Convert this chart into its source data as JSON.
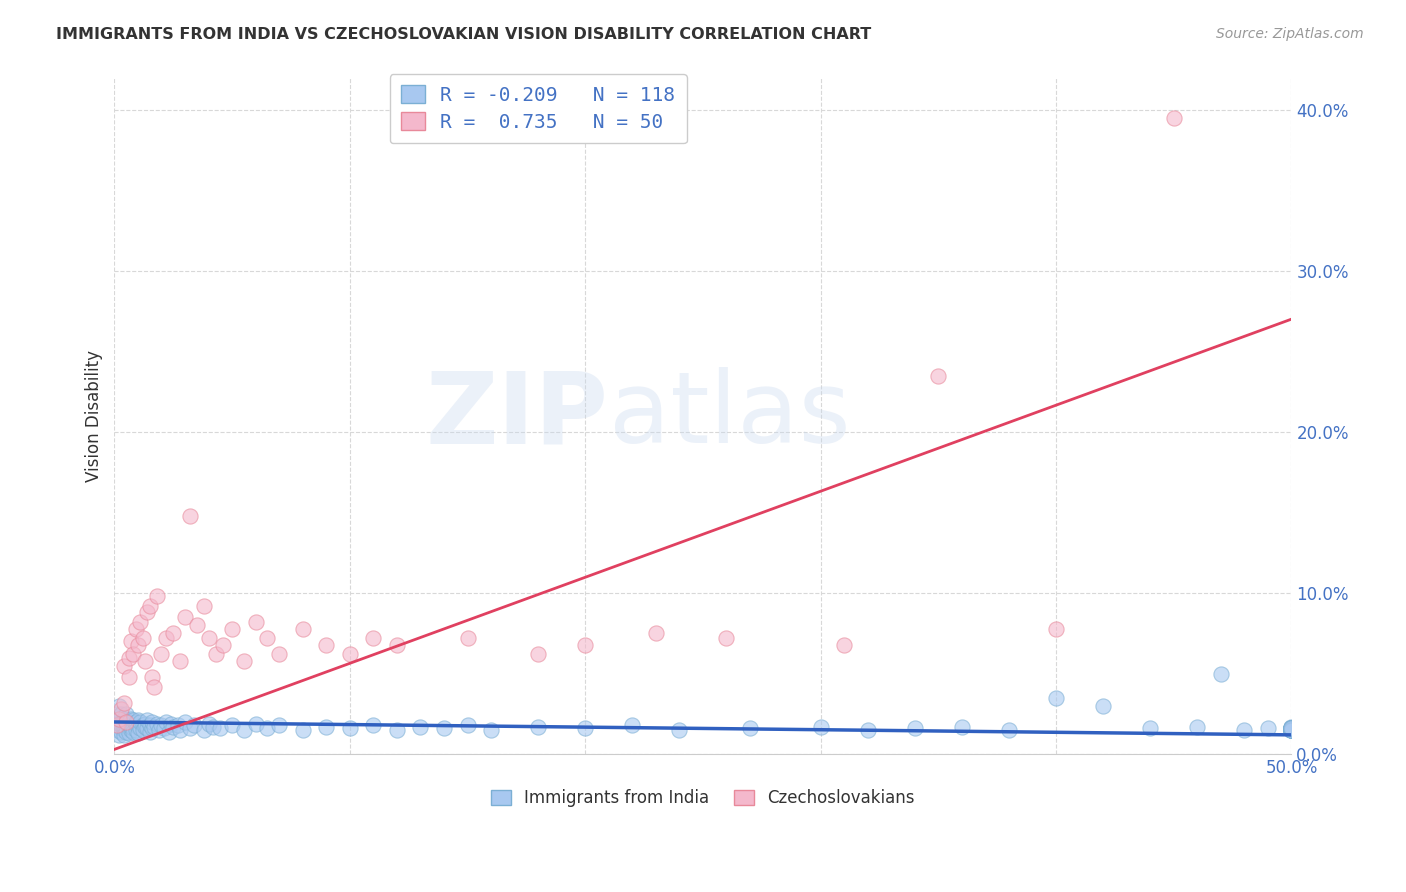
{
  "title": "IMMIGRANTS FROM INDIA VS CZECHOSLOVAKIAN VISION DISABILITY CORRELATION CHART",
  "source": "Source: ZipAtlas.com",
  "ylabel": "Vision Disability",
  "watermark": "ZIPatlas",
  "xlim": [
    0.0,
    0.5
  ],
  "ylim": [
    0.0,
    0.42
  ],
  "yticks": [
    0.0,
    0.1,
    0.2,
    0.3,
    0.4
  ],
  "xticks_grid": [
    0.0,
    0.1,
    0.2,
    0.3,
    0.4,
    0.5
  ],
  "xtick_edge_labels": [
    "0.0%",
    "50.0%"
  ],
  "xtick_edge_positions": [
    0.0,
    0.5
  ],
  "ytick_labels": [
    "0.0%",
    "10.0%",
    "20.0%",
    "30.0%",
    "40.0%"
  ],
  "blue_color": "#a8c8f0",
  "pink_color": "#f4b8cc",
  "blue_edge": "#7bafd4",
  "pink_edge": "#e8899a",
  "trend_blue_color": "#3060c0",
  "trend_pink_color": "#e04060",
  "title_color": "#333333",
  "source_color": "#999999",
  "axis_label_color": "#333333",
  "tick_color": "#4472c4",
  "grid_color": "#d8d8d8",
  "background_color": "#ffffff",
  "legend_label_blue": "Immigrants from India",
  "legend_label_pink": "Czechoslovakians",
  "legend_R_blue": "R = -0.209",
  "legend_N_blue": "N = 118",
  "legend_R_pink": "R =  0.735",
  "legend_N_pink": "N = 50",
  "blue_scatter_x": [
    0.001,
    0.001,
    0.001,
    0.002,
    0.002,
    0.002,
    0.002,
    0.003,
    0.003,
    0.003,
    0.003,
    0.003,
    0.004,
    0.004,
    0.004,
    0.004,
    0.004,
    0.005,
    0.005,
    0.005,
    0.005,
    0.005,
    0.006,
    0.006,
    0.006,
    0.006,
    0.007,
    0.007,
    0.007,
    0.007,
    0.008,
    0.008,
    0.008,
    0.009,
    0.009,
    0.009,
    0.01,
    0.01,
    0.01,
    0.011,
    0.011,
    0.012,
    0.012,
    0.013,
    0.013,
    0.014,
    0.014,
    0.015,
    0.015,
    0.016,
    0.016,
    0.017,
    0.018,
    0.019,
    0.02,
    0.021,
    0.022,
    0.023,
    0.024,
    0.025,
    0.027,
    0.028,
    0.03,
    0.032,
    0.034,
    0.038,
    0.04,
    0.042,
    0.045,
    0.05,
    0.055,
    0.06,
    0.065,
    0.07,
    0.08,
    0.09,
    0.1,
    0.11,
    0.12,
    0.13,
    0.14,
    0.15,
    0.16,
    0.18,
    0.2,
    0.22,
    0.24,
    0.27,
    0.3,
    0.32,
    0.34,
    0.36,
    0.38,
    0.4,
    0.42,
    0.44,
    0.46,
    0.47,
    0.48,
    0.49,
    0.5,
    0.5,
    0.5,
    0.5,
    0.5,
    0.5,
    0.5,
    0.5,
    0.5,
    0.5,
    0.5,
    0.5,
    0.5,
    0.5,
    0.5,
    0.5,
    0.5,
    0.5
  ],
  "blue_scatter_y": [
    0.02,
    0.015,
    0.025,
    0.018,
    0.022,
    0.012,
    0.03,
    0.016,
    0.02,
    0.014,
    0.025,
    0.018,
    0.015,
    0.02,
    0.017,
    0.022,
    0.012,
    0.018,
    0.016,
    0.021,
    0.014,
    0.025,
    0.016,
    0.02,
    0.018,
    0.013,
    0.015,
    0.019,
    0.022,
    0.017,
    0.016,
    0.021,
    0.014,
    0.018,
    0.02,
    0.015,
    0.017,
    0.021,
    0.013,
    0.016,
    0.02,
    0.018,
    0.015,
    0.019,
    0.017,
    0.016,
    0.021,
    0.014,
    0.018,
    0.016,
    0.02,
    0.017,
    0.019,
    0.015,
    0.018,
    0.016,
    0.02,
    0.014,
    0.019,
    0.017,
    0.018,
    0.015,
    0.02,
    0.016,
    0.018,
    0.015,
    0.019,
    0.017,
    0.016,
    0.018,
    0.015,
    0.019,
    0.016,
    0.018,
    0.015,
    0.017,
    0.016,
    0.018,
    0.015,
    0.017,
    0.016,
    0.018,
    0.015,
    0.017,
    0.016,
    0.018,
    0.015,
    0.016,
    0.017,
    0.015,
    0.016,
    0.017,
    0.015,
    0.035,
    0.03,
    0.016,
    0.017,
    0.05,
    0.015,
    0.016,
    0.016,
    0.016,
    0.015,
    0.016,
    0.015,
    0.017,
    0.015,
    0.016,
    0.015,
    0.016,
    0.015,
    0.016,
    0.015,
    0.016,
    0.015,
    0.016,
    0.015,
    0.016
  ],
  "pink_scatter_x": [
    0.001,
    0.002,
    0.003,
    0.004,
    0.004,
    0.005,
    0.006,
    0.006,
    0.007,
    0.008,
    0.009,
    0.01,
    0.011,
    0.012,
    0.013,
    0.014,
    0.015,
    0.016,
    0.017,
    0.018,
    0.02,
    0.022,
    0.025,
    0.028,
    0.03,
    0.032,
    0.035,
    0.038,
    0.04,
    0.043,
    0.046,
    0.05,
    0.055,
    0.06,
    0.065,
    0.07,
    0.08,
    0.09,
    0.1,
    0.11,
    0.12,
    0.15,
    0.18,
    0.2,
    0.23,
    0.26,
    0.31,
    0.35,
    0.4,
    0.45
  ],
  "pink_scatter_y": [
    0.018,
    0.022,
    0.028,
    0.032,
    0.055,
    0.02,
    0.06,
    0.048,
    0.07,
    0.062,
    0.078,
    0.068,
    0.082,
    0.072,
    0.058,
    0.088,
    0.092,
    0.048,
    0.042,
    0.098,
    0.062,
    0.072,
    0.075,
    0.058,
    0.085,
    0.148,
    0.08,
    0.092,
    0.072,
    0.062,
    0.068,
    0.078,
    0.058,
    0.082,
    0.072,
    0.062,
    0.078,
    0.068,
    0.062,
    0.072,
    0.068,
    0.072,
    0.062,
    0.068,
    0.075,
    0.072,
    0.068,
    0.235,
    0.078,
    0.395
  ],
  "blue_trend_x": [
    0.0,
    0.5
  ],
  "blue_trend_y": [
    0.02,
    0.012
  ],
  "pink_trend_x": [
    0.0,
    0.5
  ],
  "pink_trend_y": [
    0.003,
    0.27
  ]
}
